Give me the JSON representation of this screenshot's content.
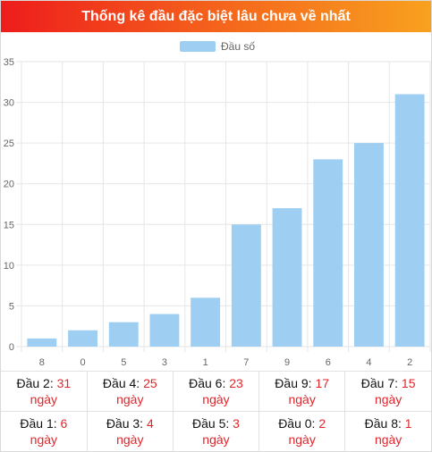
{
  "header": {
    "title": "Thống kê đầu đặc biệt lâu chưa về nhất"
  },
  "colors": {
    "bar": "#9ecff2",
    "grid": "#e6e6e6",
    "axis_text": "#666666",
    "value_text": "#e0262b"
  },
  "chart_data": {
    "type": "bar",
    "title": "Thống kê đầu đặc biệt lâu chưa về nhất",
    "categories": [
      "8",
      "0",
      "5",
      "3",
      "1",
      "7",
      "9",
      "6",
      "4",
      "2"
    ],
    "series": [
      {
        "name": "Đầu số",
        "values": [
          1,
          2,
          3,
          4,
          6,
          15,
          17,
          23,
          25,
          31
        ]
      }
    ],
    "ylim": [
      0,
      35
    ],
    "yticks": [
      0,
      5,
      10,
      15,
      20,
      25,
      30,
      35
    ],
    "grid": true,
    "legend_position": "top"
  },
  "stats": {
    "rows": [
      [
        {
          "label": "Đầu 2: ",
          "value": "31",
          "unit": "ngày"
        },
        {
          "label": "Đầu 4: ",
          "value": "25",
          "unit": "ngày"
        },
        {
          "label": "Đầu 6: ",
          "value": "23",
          "unit": "ngày"
        },
        {
          "label": "Đầu 9: ",
          "value": "17",
          "unit": "ngày"
        },
        {
          "label": "Đầu 7: ",
          "value": "15",
          "unit": "ngày"
        }
      ],
      [
        {
          "label": "Đầu 1: ",
          "value": "6",
          "unit": "ngày"
        },
        {
          "label": "Đầu 3: ",
          "value": "4",
          "unit": "ngày"
        },
        {
          "label": "Đầu 5: ",
          "value": "3",
          "unit": "ngày"
        },
        {
          "label": "Đầu 0: ",
          "value": "2",
          "unit": "ngày"
        },
        {
          "label": "Đầu 8: ",
          "value": "1",
          "unit": "ngày"
        }
      ]
    ]
  }
}
